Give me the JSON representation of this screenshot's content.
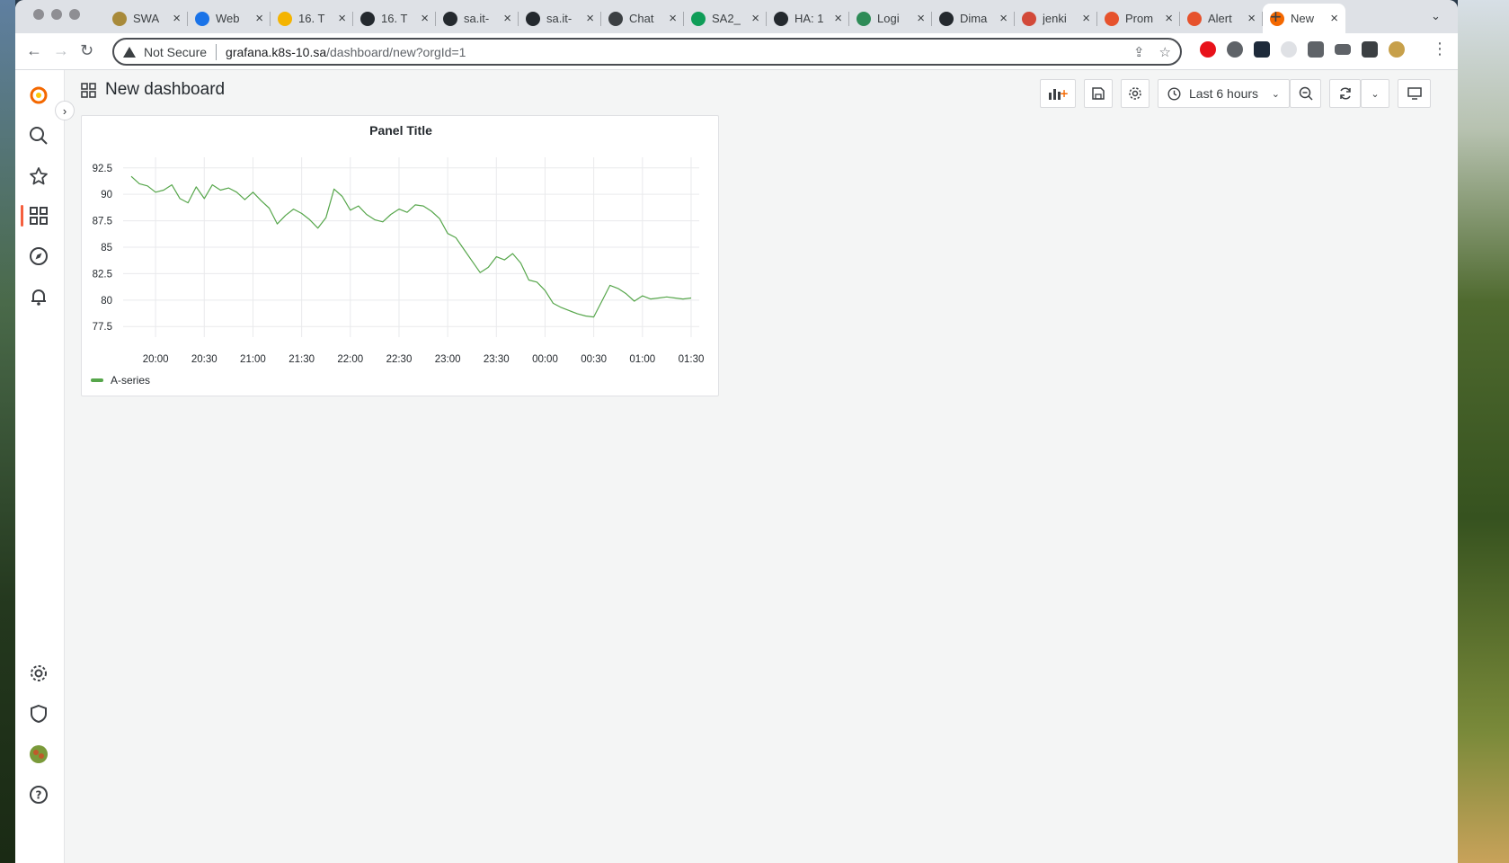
{
  "browser": {
    "tabs": [
      {
        "label": "SWA",
        "color": "#a88a3a"
      },
      {
        "label": "Web",
        "color": "#1a73e8"
      },
      {
        "label": "16. T",
        "color": "#f4b400"
      },
      {
        "label": "16. T",
        "color": "#24292e"
      },
      {
        "label": "sa.it-",
        "color": "#24292e"
      },
      {
        "label": "sa.it-",
        "color": "#24292e"
      },
      {
        "label": "Chat",
        "color": "#3c4043"
      },
      {
        "label": "SA2_",
        "color": "#0f9d58"
      },
      {
        "label": "HA: 1",
        "color": "#24292e"
      },
      {
        "label": "Logi",
        "color": "#2e8b57"
      },
      {
        "label": "Dima",
        "color": "#24292e"
      },
      {
        "label": "jenki",
        "color": "#d24939"
      },
      {
        "label": "Prom",
        "color": "#e6522c"
      },
      {
        "label": "Alert",
        "color": "#e6522c"
      },
      {
        "label": "New",
        "color": "#f46800"
      }
    ],
    "new_tab_label": "+",
    "address": {
      "security_label": "Not Secure",
      "host": "grafana.k8s-10.sa",
      "path": "/dashboard/new?orgId=1"
    }
  },
  "grafana": {
    "dashboard_title": "New dashboard",
    "time_picker_label": "Last 6 hours",
    "panel": {
      "title": "Panel Title",
      "legend": [
        "A-series"
      ]
    }
  },
  "chart_data": {
    "type": "line",
    "title": "Panel Title",
    "xlabel": "",
    "ylabel": "",
    "x_ticks": [
      "20:00",
      "20:30",
      "21:00",
      "21:30",
      "22:00",
      "22:30",
      "23:00",
      "23:30",
      "00:00",
      "00:30",
      "01:00",
      "01:30"
    ],
    "y_ticks": [
      77.5,
      80,
      82.5,
      85,
      87.5,
      90,
      92.5
    ],
    "ylim": [
      76.5,
      93.5
    ],
    "grid": true,
    "legend_position": "bottom-left",
    "series": [
      {
        "name": "A-series",
        "color": "#56a64b",
        "x": [
          "19:45",
          "19:50",
          "19:55",
          "20:00",
          "20:05",
          "20:10",
          "20:15",
          "20:20",
          "20:25",
          "20:30",
          "20:35",
          "20:40",
          "20:45",
          "20:50",
          "20:55",
          "21:00",
          "21:05",
          "21:10",
          "21:15",
          "21:20",
          "21:25",
          "21:30",
          "21:35",
          "21:40",
          "21:45",
          "21:50",
          "21:55",
          "22:00",
          "22:05",
          "22:10",
          "22:15",
          "22:20",
          "22:25",
          "22:30",
          "22:35",
          "22:40",
          "22:45",
          "22:50",
          "22:55",
          "23:00",
          "23:05",
          "23:10",
          "23:15",
          "23:20",
          "23:25",
          "23:30",
          "23:35",
          "23:40",
          "23:45",
          "23:50",
          "23:55",
          "00:00",
          "00:05",
          "00:10",
          "00:15",
          "00:20",
          "00:25",
          "00:30",
          "00:35",
          "00:40",
          "00:45",
          "00:50",
          "00:55",
          "01:00",
          "01:05",
          "01:10",
          "01:15",
          "01:20",
          "01:25",
          "01:30"
        ],
        "y": [
          91.7,
          91.0,
          90.8,
          90.2,
          90.4,
          90.9,
          89.6,
          89.2,
          90.7,
          89.6,
          90.9,
          90.4,
          90.6,
          90.2,
          89.5,
          90.2,
          89.4,
          88.7,
          87.2,
          88.0,
          88.6,
          88.2,
          87.6,
          86.8,
          87.8,
          90.5,
          89.8,
          88.5,
          88.9,
          88.1,
          87.6,
          87.4,
          88.1,
          88.6,
          88.3,
          89.0,
          88.9,
          88.4,
          87.7,
          86.3,
          85.9,
          84.8,
          83.7,
          82.6,
          83.1,
          84.1,
          83.8,
          84.4,
          83.5,
          81.9,
          81.7,
          80.9,
          79.7,
          79.3,
          79.0,
          78.7,
          78.5,
          78.4,
          79.9,
          81.4,
          81.1,
          80.6,
          79.9,
          80.4,
          80.1,
          80.2,
          80.3,
          80.2,
          80.1,
          80.2
        ]
      }
    ]
  }
}
